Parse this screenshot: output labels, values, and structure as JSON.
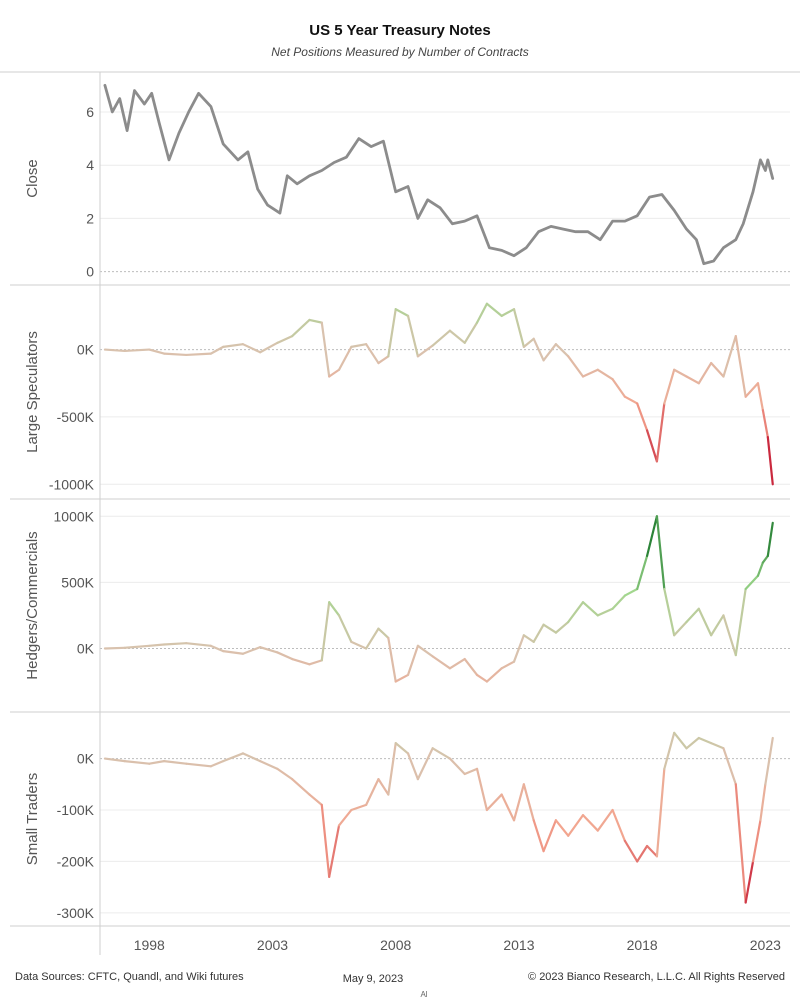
{
  "header": {
    "title": "US 5 Year Treasury Notes",
    "subtitle": "Net Positions Measured by Number of Contracts"
  },
  "footer": {
    "sources": "Data Sources: CFTC, Quandl, and Wiki futures",
    "date": "May 9, 2023",
    "copyright": "© 2023 Bianco Research, L.L.C. All Rights Reserved",
    "tiny_mark": "Al"
  },
  "colors": {
    "close_line": "#8c8c8c",
    "positive_strong": "#1e7a2e",
    "positive_light": "#9fd88c",
    "neutral": "#d9c2ae",
    "negative_light": "#f4a48e",
    "negative_strong": "#c1102e"
  },
  "chart_data": {
    "type": "line",
    "x_axis": {
      "ticks": [
        1998,
        2003,
        2008,
        2013,
        2018,
        2023
      ],
      "range": [
        1996,
        2024
      ]
    },
    "panels": [
      {
        "id": "close",
        "ylabel": "Close",
        "ylim": [
          -0.2,
          7.2
        ],
        "ticks": [
          0,
          2,
          4,
          6
        ],
        "tick_labels": [
          "0",
          "2",
          "4",
          "6"
        ],
        "color_mode": "solid",
        "points": [
          [
            1996.2,
            7.0
          ],
          [
            1996.5,
            6.0
          ],
          [
            1996.8,
            6.5
          ],
          [
            1997.1,
            5.3
          ],
          [
            1997.4,
            6.8
          ],
          [
            1997.8,
            6.3
          ],
          [
            1998.1,
            6.7
          ],
          [
            1998.4,
            5.6
          ],
          [
            1998.8,
            4.2
          ],
          [
            1999.2,
            5.2
          ],
          [
            1999.6,
            6.0
          ],
          [
            2000.0,
            6.7
          ],
          [
            2000.5,
            6.2
          ],
          [
            2001.0,
            4.8
          ],
          [
            2001.6,
            4.2
          ],
          [
            2002.0,
            4.5
          ],
          [
            2002.4,
            3.1
          ],
          [
            2002.8,
            2.5
          ],
          [
            2003.3,
            2.2
          ],
          [
            2003.6,
            3.6
          ],
          [
            2004.0,
            3.3
          ],
          [
            2004.5,
            3.6
          ],
          [
            2005.0,
            3.8
          ],
          [
            2005.5,
            4.1
          ],
          [
            2006.0,
            4.3
          ],
          [
            2006.5,
            5.0
          ],
          [
            2007.0,
            4.7
          ],
          [
            2007.5,
            4.9
          ],
          [
            2008.0,
            3.0
          ],
          [
            2008.5,
            3.2
          ],
          [
            2008.9,
            2.0
          ],
          [
            2009.3,
            2.7
          ],
          [
            2009.8,
            2.4
          ],
          [
            2010.3,
            1.8
          ],
          [
            2010.8,
            1.9
          ],
          [
            2011.3,
            2.1
          ],
          [
            2011.8,
            0.9
          ],
          [
            2012.3,
            0.8
          ],
          [
            2012.8,
            0.6
          ],
          [
            2013.3,
            0.9
          ],
          [
            2013.8,
            1.5
          ],
          [
            2014.3,
            1.7
          ],
          [
            2014.8,
            1.6
          ],
          [
            2015.3,
            1.5
          ],
          [
            2015.8,
            1.5
          ],
          [
            2016.3,
            1.2
          ],
          [
            2016.8,
            1.9
          ],
          [
            2017.3,
            1.9
          ],
          [
            2017.8,
            2.1
          ],
          [
            2018.3,
            2.8
          ],
          [
            2018.8,
            2.9
          ],
          [
            2019.3,
            2.3
          ],
          [
            2019.8,
            1.6
          ],
          [
            2020.2,
            1.2
          ],
          [
            2020.5,
            0.3
          ],
          [
            2020.9,
            0.4
          ],
          [
            2021.3,
            0.9
          ],
          [
            2021.8,
            1.2
          ],
          [
            2022.1,
            1.8
          ],
          [
            2022.5,
            3.0
          ],
          [
            2022.8,
            4.2
          ],
          [
            2023.0,
            3.8
          ],
          [
            2023.1,
            4.2
          ],
          [
            2023.3,
            3.5
          ]
        ]
      },
      {
        "id": "large_speculators",
        "ylabel": "Large Speculators",
        "ylim": [
          -1050000,
          420000
        ],
        "ticks": [
          0,
          -500000,
          -1000000
        ],
        "tick_labels": [
          "0K",
          "-500K",
          "-1000K"
        ],
        "color_mode": "diverging",
        "color_scale": 900000,
        "points": [
          [
            1996.2,
            0
          ],
          [
            1997.0,
            -10000
          ],
          [
            1998.0,
            0
          ],
          [
            1998.6,
            -30000
          ],
          [
            1999.5,
            -40000
          ],
          [
            2000.5,
            -30000
          ],
          [
            2001.0,
            20000
          ],
          [
            2001.8,
            40000
          ],
          [
            2002.5,
            -20000
          ],
          [
            2003.2,
            50000
          ],
          [
            2003.8,
            100000
          ],
          [
            2004.5,
            220000
          ],
          [
            2005.0,
            200000
          ],
          [
            2005.3,
            -200000
          ],
          [
            2005.7,
            -150000
          ],
          [
            2006.2,
            20000
          ],
          [
            2006.8,
            40000
          ],
          [
            2007.3,
            -100000
          ],
          [
            2007.7,
            -50000
          ],
          [
            2008.0,
            300000
          ],
          [
            2008.5,
            250000
          ],
          [
            2008.9,
            -50000
          ],
          [
            2009.5,
            30000
          ],
          [
            2010.2,
            140000
          ],
          [
            2010.8,
            50000
          ],
          [
            2011.3,
            200000
          ],
          [
            2011.7,
            340000
          ],
          [
            2012.3,
            250000
          ],
          [
            2012.8,
            300000
          ],
          [
            2013.2,
            20000
          ],
          [
            2013.6,
            80000
          ],
          [
            2014.0,
            -80000
          ],
          [
            2014.5,
            40000
          ],
          [
            2015.0,
            -50000
          ],
          [
            2015.6,
            -200000
          ],
          [
            2016.2,
            -150000
          ],
          [
            2016.8,
            -220000
          ],
          [
            2017.3,
            -350000
          ],
          [
            2017.8,
            -400000
          ],
          [
            2018.2,
            -600000
          ],
          [
            2018.6,
            -830000
          ],
          [
            2018.9,
            -400000
          ],
          [
            2019.3,
            -150000
          ],
          [
            2019.8,
            -200000
          ],
          [
            2020.3,
            -250000
          ],
          [
            2020.8,
            -100000
          ],
          [
            2021.3,
            -200000
          ],
          [
            2021.8,
            100000
          ],
          [
            2022.2,
            -350000
          ],
          [
            2022.7,
            -250000
          ],
          [
            2022.9,
            -450000
          ],
          [
            2023.1,
            -650000
          ],
          [
            2023.3,
            -1000000
          ]
        ]
      },
      {
        "id": "hedgers_commercials",
        "ylabel": "Hedgers/Commercials",
        "ylim": [
          -420000,
          1070000
        ],
        "ticks": [
          1000000,
          500000,
          0
        ],
        "tick_labels": [
          "1000K",
          "500K",
          "0K"
        ],
        "color_mode": "diverging",
        "color_scale": 900000,
        "points": [
          [
            1996.2,
            0
          ],
          [
            1997.0,
            5000
          ],
          [
            1998.0,
            20000
          ],
          [
            1998.6,
            30000
          ],
          [
            1999.5,
            40000
          ],
          [
            2000.5,
            20000
          ],
          [
            2001.0,
            -20000
          ],
          [
            2001.8,
            -40000
          ],
          [
            2002.5,
            10000
          ],
          [
            2003.2,
            -30000
          ],
          [
            2003.8,
            -80000
          ],
          [
            2004.5,
            -120000
          ],
          [
            2005.0,
            -90000
          ],
          [
            2005.3,
            350000
          ],
          [
            2005.7,
            250000
          ],
          [
            2006.2,
            50000
          ],
          [
            2006.8,
            0
          ],
          [
            2007.3,
            150000
          ],
          [
            2007.7,
            80000
          ],
          [
            2008.0,
            -250000
          ],
          [
            2008.5,
            -200000
          ],
          [
            2008.9,
            20000
          ],
          [
            2009.5,
            -60000
          ],
          [
            2010.2,
            -150000
          ],
          [
            2010.8,
            -80000
          ],
          [
            2011.3,
            -200000
          ],
          [
            2011.7,
            -250000
          ],
          [
            2012.3,
            -150000
          ],
          [
            2012.8,
            -100000
          ],
          [
            2013.2,
            100000
          ],
          [
            2013.6,
            50000
          ],
          [
            2014.0,
            180000
          ],
          [
            2014.5,
            120000
          ],
          [
            2015.0,
            200000
          ],
          [
            2015.6,
            350000
          ],
          [
            2016.2,
            250000
          ],
          [
            2016.8,
            300000
          ],
          [
            2017.3,
            400000
          ],
          [
            2017.8,
            450000
          ],
          [
            2018.2,
            700000
          ],
          [
            2018.6,
            1000000
          ],
          [
            2018.9,
            450000
          ],
          [
            2019.3,
            100000
          ],
          [
            2019.8,
            200000
          ],
          [
            2020.3,
            300000
          ],
          [
            2020.8,
            100000
          ],
          [
            2021.3,
            250000
          ],
          [
            2021.8,
            -50000
          ],
          [
            2022.2,
            450000
          ],
          [
            2022.7,
            550000
          ],
          [
            2022.9,
            650000
          ],
          [
            2023.1,
            700000
          ],
          [
            2023.3,
            950000
          ]
        ]
      },
      {
        "id": "small_traders",
        "ylabel": "Small Traders",
        "ylim": [
          -310000,
          75000
        ],
        "ticks": [
          0,
          -100000,
          -200000,
          -300000
        ],
        "tick_labels": [
          "0K",
          "-100K",
          "-200K",
          "-300K"
        ],
        "color_mode": "diverging",
        "color_scale": 280000,
        "points": [
          [
            1996.2,
            0
          ],
          [
            1997.0,
            -5000
          ],
          [
            1998.0,
            -10000
          ],
          [
            1998.6,
            -5000
          ],
          [
            1999.5,
            -10000
          ],
          [
            2000.5,
            -15000
          ],
          [
            2001.0,
            -5000
          ],
          [
            2001.8,
            10000
          ],
          [
            2002.5,
            -5000
          ],
          [
            2003.2,
            -20000
          ],
          [
            2003.8,
            -40000
          ],
          [
            2004.5,
            -70000
          ],
          [
            2005.0,
            -90000
          ],
          [
            2005.3,
            -230000
          ],
          [
            2005.7,
            -130000
          ],
          [
            2006.2,
            -100000
          ],
          [
            2006.8,
            -90000
          ],
          [
            2007.3,
            -40000
          ],
          [
            2007.7,
            -70000
          ],
          [
            2008.0,
            30000
          ],
          [
            2008.5,
            10000
          ],
          [
            2008.9,
            -40000
          ],
          [
            2009.5,
            20000
          ],
          [
            2010.2,
            0
          ],
          [
            2010.8,
            -30000
          ],
          [
            2011.3,
            -20000
          ],
          [
            2011.7,
            -100000
          ],
          [
            2012.3,
            -70000
          ],
          [
            2012.8,
            -120000
          ],
          [
            2013.2,
            -50000
          ],
          [
            2013.6,
            -120000
          ],
          [
            2014.0,
            -180000
          ],
          [
            2014.5,
            -120000
          ],
          [
            2015.0,
            -150000
          ],
          [
            2015.6,
            -110000
          ],
          [
            2016.2,
            -140000
          ],
          [
            2016.8,
            -100000
          ],
          [
            2017.3,
            -160000
          ],
          [
            2017.8,
            -200000
          ],
          [
            2018.2,
            -170000
          ],
          [
            2018.6,
            -190000
          ],
          [
            2018.9,
            -20000
          ],
          [
            2019.3,
            50000
          ],
          [
            2019.8,
            20000
          ],
          [
            2020.3,
            40000
          ],
          [
            2020.8,
            30000
          ],
          [
            2021.3,
            20000
          ],
          [
            2021.8,
            -50000
          ],
          [
            2022.2,
            -280000
          ],
          [
            2022.5,
            -200000
          ],
          [
            2022.8,
            -120000
          ],
          [
            2023.0,
            -50000
          ],
          [
            2023.3,
            40000
          ]
        ]
      }
    ]
  }
}
